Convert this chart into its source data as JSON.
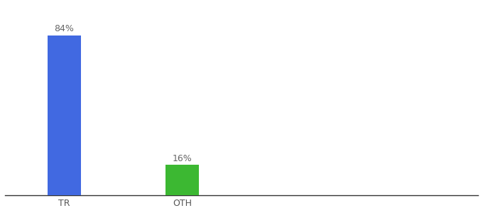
{
  "categories": [
    "TR",
    "OTH"
  ],
  "values": [
    84,
    16
  ],
  "bar_colors": [
    "#4169e1",
    "#3cb832"
  ],
  "label_texts": [
    "84%",
    "16%"
  ],
  "ylim": [
    0,
    100
  ],
  "background_color": "#ffffff",
  "label_color": "#666666",
  "label_fontsize": 9,
  "tick_fontsize": 9,
  "bar_width": 0.28
}
